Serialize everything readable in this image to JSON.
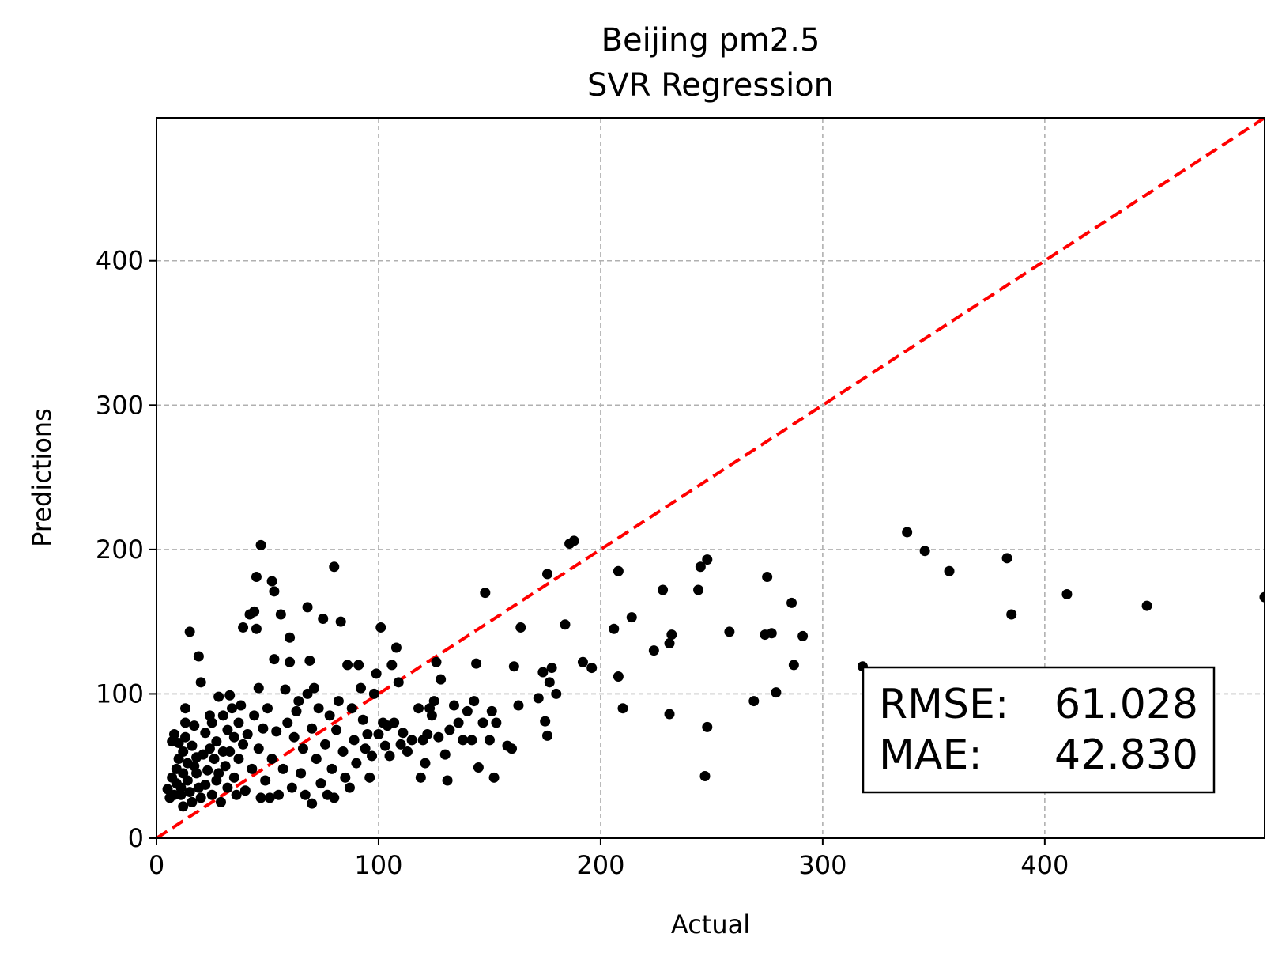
{
  "chart_data": {
    "type": "scatter",
    "title": [
      "Beijing pm2.5",
      "SVR Regression"
    ],
    "xlabel": "Actual",
    "ylabel": "Predictions",
    "xlim": [
      0,
      499
    ],
    "ylim": [
      0,
      499
    ],
    "xticks": [
      0,
      100,
      200,
      300,
      400
    ],
    "yticks": [
      0,
      100,
      200,
      300,
      400
    ],
    "grid": true,
    "point_color": "#000000",
    "reference_line": {
      "from": [
        0,
        0
      ],
      "to": [
        499,
        499
      ],
      "color": "#ff0000",
      "style": "dashed"
    },
    "annotation": {
      "lines": [
        {
          "label": "RMSE:",
          "value": "61.028"
        },
        {
          "label": "MAE:",
          "value": "42.830"
        }
      ]
    },
    "points": [
      [
        5,
        34
      ],
      [
        6,
        28
      ],
      [
        7,
        42
      ],
      [
        7,
        67
      ],
      [
        8,
        72
      ],
      [
        8,
        30
      ],
      [
        9,
        48
      ],
      [
        9,
        38
      ],
      [
        10,
        66
      ],
      [
        10,
        55
      ],
      [
        11,
        35
      ],
      [
        11,
        30
      ],
      [
        12,
        45
      ],
      [
        12,
        22
      ],
      [
        12,
        60
      ],
      [
        13,
        90
      ],
      [
        13,
        70
      ],
      [
        13,
        80
      ],
      [
        14,
        40
      ],
      [
        14,
        52
      ],
      [
        15,
        143
      ],
      [
        15,
        32
      ],
      [
        16,
        25
      ],
      [
        16,
        64
      ],
      [
        17,
        78
      ],
      [
        17,
        50
      ],
      [
        18,
        56
      ],
      [
        18,
        45
      ],
      [
        19,
        126
      ],
      [
        19,
        35
      ],
      [
        20,
        108
      ],
      [
        20,
        28
      ],
      [
        21,
        58
      ],
      [
        22,
        37
      ],
      [
        22,
        73
      ],
      [
        23,
        47
      ],
      [
        24,
        85
      ],
      [
        24,
        62
      ],
      [
        25,
        30
      ],
      [
        25,
        80
      ],
      [
        26,
        55
      ],
      [
        27,
        40
      ],
      [
        27,
        67
      ],
      [
        28,
        98
      ],
      [
        28,
        45
      ],
      [
        29,
        25
      ],
      [
        30,
        85
      ],
      [
        30,
        60
      ],
      [
        31,
        50
      ],
      [
        32,
        75
      ],
      [
        32,
        35
      ],
      [
        33,
        99
      ],
      [
        33,
        60
      ],
      [
        34,
        90
      ],
      [
        35,
        42
      ],
      [
        35,
        70
      ],
      [
        36,
        30
      ],
      [
        37,
        80
      ],
      [
        37,
        55
      ],
      [
        38,
        92
      ],
      [
        39,
        146
      ],
      [
        39,
        65
      ],
      [
        40,
        33
      ],
      [
        41,
        72
      ],
      [
        42,
        155
      ],
      [
        43,
        48
      ],
      [
        44,
        157
      ],
      [
        44,
        85
      ],
      [
        45,
        181
      ],
      [
        45,
        145
      ],
      [
        46,
        104
      ],
      [
        46,
        62
      ],
      [
        47,
        203
      ],
      [
        47,
        28
      ],
      [
        48,
        76
      ],
      [
        49,
        40
      ],
      [
        50,
        90
      ],
      [
        51,
        28
      ],
      [
        52,
        178
      ],
      [
        52,
        55
      ],
      [
        53,
        171
      ],
      [
        53,
        124
      ],
      [
        54,
        74
      ],
      [
        55,
        30
      ],
      [
        56,
        155
      ],
      [
        57,
        48
      ],
      [
        58,
        103
      ],
      [
        59,
        80
      ],
      [
        60,
        139
      ],
      [
        60,
        122
      ],
      [
        61,
        35
      ],
      [
        62,
        70
      ],
      [
        63,
        88
      ],
      [
        64,
        95
      ],
      [
        65,
        45
      ],
      [
        66,
        62
      ],
      [
        67,
        30
      ],
      [
        68,
        160
      ],
      [
        68,
        100
      ],
      [
        69,
        123
      ],
      [
        70,
        24
      ],
      [
        70,
        76
      ],
      [
        71,
        104
      ],
      [
        72,
        55
      ],
      [
        73,
        90
      ],
      [
        74,
        38
      ],
      [
        75,
        152
      ],
      [
        76,
        65
      ],
      [
        77,
        30
      ],
      [
        78,
        85
      ],
      [
        79,
        48
      ],
      [
        80,
        188
      ],
      [
        80,
        28
      ],
      [
        81,
        75
      ],
      [
        82,
        95
      ],
      [
        83,
        150
      ],
      [
        84,
        60
      ],
      [
        85,
        42
      ],
      [
        86,
        120
      ],
      [
        87,
        35
      ],
      [
        88,
        90
      ],
      [
        89,
        68
      ],
      [
        90,
        52
      ],
      [
        91,
        120
      ],
      [
        92,
        104
      ],
      [
        93,
        82
      ],
      [
        94,
        62
      ],
      [
        95,
        72
      ],
      [
        96,
        42
      ],
      [
        97,
        57
      ],
      [
        98,
        100
      ],
      [
        99,
        114
      ],
      [
        100,
        72
      ],
      [
        101,
        146
      ],
      [
        102,
        80
      ],
      [
        103,
        64
      ],
      [
        104,
        78
      ],
      [
        105,
        57
      ],
      [
        106,
        120
      ],
      [
        107,
        80
      ],
      [
        108,
        132
      ],
      [
        109,
        108
      ],
      [
        110,
        65
      ],
      [
        111,
        73
      ],
      [
        113,
        60
      ],
      [
        115,
        68
      ],
      [
        118,
        90
      ],
      [
        119,
        42
      ],
      [
        120,
        68
      ],
      [
        121,
        52
      ],
      [
        122,
        72
      ],
      [
        123,
        90
      ],
      [
        124,
        85
      ],
      [
        125,
        95
      ],
      [
        126,
        122
      ],
      [
        127,
        70
      ],
      [
        128,
        110
      ],
      [
        130,
        58
      ],
      [
        131,
        40
      ],
      [
        132,
        75
      ],
      [
        134,
        92
      ],
      [
        136,
        80
      ],
      [
        138,
        68
      ],
      [
        140,
        88
      ],
      [
        142,
        68
      ],
      [
        143,
        95
      ],
      [
        144,
        121
      ],
      [
        145,
        49
      ],
      [
        147,
        80
      ],
      [
        148,
        170
      ],
      [
        150,
        68
      ],
      [
        151,
        88
      ],
      [
        152,
        42
      ],
      [
        153,
        80
      ],
      [
        158,
        64
      ],
      [
        160,
        62
      ],
      [
        161,
        119
      ],
      [
        163,
        92
      ],
      [
        164,
        146
      ],
      [
        172,
        97
      ],
      [
        174,
        115
      ],
      [
        175,
        81
      ],
      [
        176,
        71
      ],
      [
        176,
        183
      ],
      [
        177,
        108
      ],
      [
        178,
        118
      ],
      [
        180,
        100
      ],
      [
        184,
        148
      ],
      [
        186,
        204
      ],
      [
        188,
        206
      ],
      [
        192,
        122
      ],
      [
        196,
        118
      ],
      [
        206,
        145
      ],
      [
        208,
        112
      ],
      [
        208,
        185
      ],
      [
        210,
        90
      ],
      [
        214,
        153
      ],
      [
        224,
        130
      ],
      [
        228,
        172
      ],
      [
        231,
        86
      ],
      [
        231,
        135
      ],
      [
        232,
        141
      ],
      [
        244,
        172
      ],
      [
        245,
        188
      ],
      [
        247,
        43
      ],
      [
        248,
        77
      ],
      [
        248,
        193
      ],
      [
        258,
        143
      ],
      [
        269,
        95
      ],
      [
        274,
        141
      ],
      [
        275,
        181
      ],
      [
        277,
        142
      ],
      [
        279,
        101
      ],
      [
        286,
        163
      ],
      [
        287,
        120
      ],
      [
        291,
        140
      ],
      [
        318,
        119
      ],
      [
        338,
        212
      ],
      [
        346,
        199
      ],
      [
        357,
        185
      ],
      [
        383,
        194
      ],
      [
        385,
        155
      ],
      [
        410,
        169
      ],
      [
        446,
        161
      ],
      [
        499,
        167
      ]
    ]
  }
}
